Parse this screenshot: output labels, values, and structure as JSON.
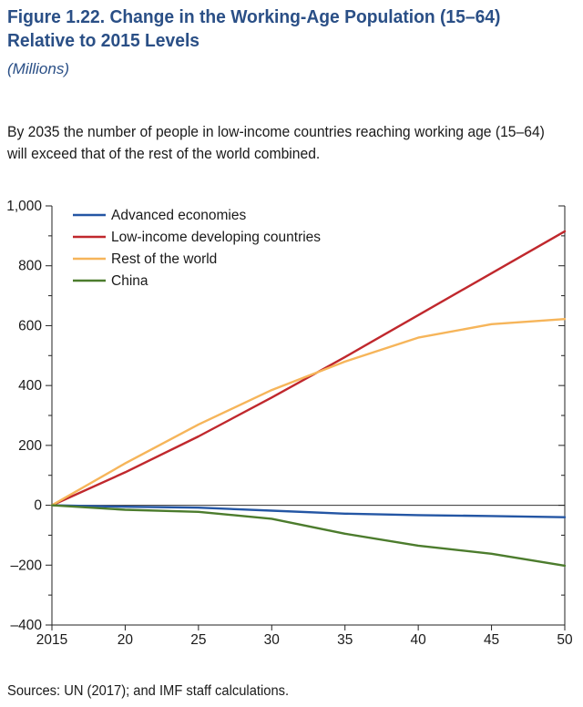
{
  "figure": {
    "title_line1": "Figure 1.22.  Change in the Working-Age Population (15–64)",
    "title_line2": "Relative to 2015 Levels",
    "units": "(Millions)",
    "description": "By 2035 the number of people in low-income countries reaching working age (15–64) will exceed that of the rest of the world combined.",
    "source": "Sources: UN (2017); and IMF staff calculations."
  },
  "chart_data": {
    "type": "line",
    "title": "Change in the Working-Age Population (15–64) Relative to 2015 Levels",
    "ylabel": "Millions",
    "xlabel": "",
    "x": [
      2015,
      2020,
      2025,
      2030,
      2035,
      2040,
      2045,
      2050
    ],
    "x_tick_labels": [
      "2015",
      "20",
      "25",
      "30",
      "35",
      "40",
      "45",
      "50"
    ],
    "y_tick_labels": [
      "1,000",
      "800",
      "600",
      "400",
      "200",
      "0",
      "–200",
      "–400"
    ],
    "y_tick_values": [
      1000,
      800,
      600,
      400,
      200,
      0,
      -200,
      -400
    ],
    "ylim": [
      -400,
      1000
    ],
    "xlim": [
      2015,
      2050
    ],
    "legend_position": "top-left",
    "series": [
      {
        "name": "Advanced economies",
        "color": "#2456a4",
        "values": [
          0,
          -5,
          -8,
          -18,
          -28,
          -33,
          -36,
          -40
        ]
      },
      {
        "name": "Low-income developing countries",
        "color": "#c0282d",
        "values": [
          0,
          110,
          230,
          360,
          495,
          635,
          775,
          915
        ]
      },
      {
        "name": "Rest of the world",
        "color": "#f6b55a",
        "values": [
          0,
          140,
          270,
          385,
          480,
          560,
          605,
          622
        ]
      },
      {
        "name": "China",
        "color": "#4c7c2d",
        "values": [
          0,
          -15,
          -22,
          -45,
          -95,
          -135,
          -162,
          -202
        ]
      }
    ]
  }
}
